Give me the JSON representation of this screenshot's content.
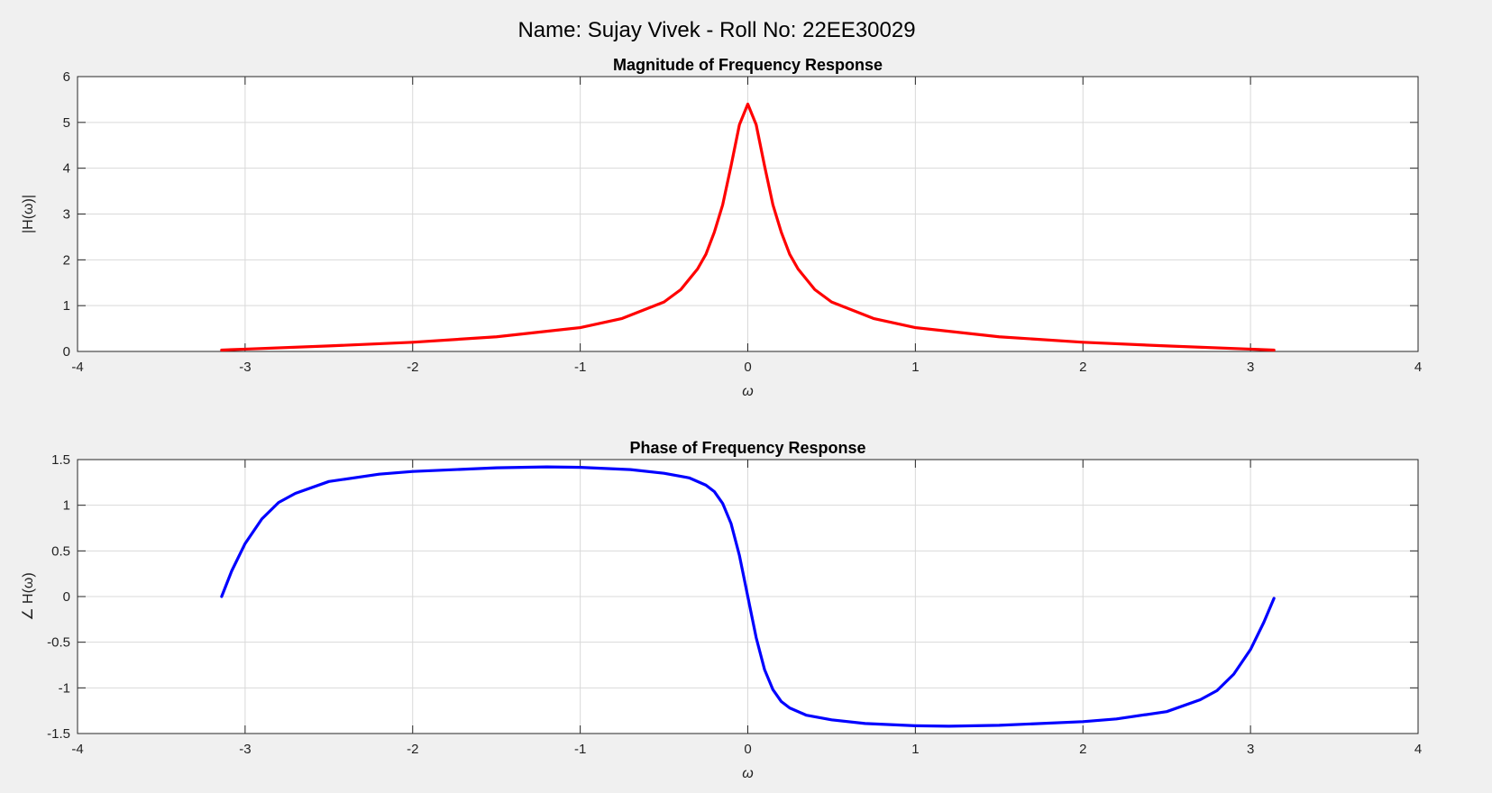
{
  "figure": {
    "suptitle": "Name: Sujay Vivek - Roll No: 22EE30029"
  },
  "chart_data": [
    {
      "type": "line",
      "title": "Magnitude of Frequency Response",
      "xlabel": "ω",
      "ylabel": "|H(ω)|",
      "xlim": [
        -4,
        4
      ],
      "ylim": [
        0,
        6
      ],
      "xticks": [
        -4,
        -3,
        -2,
        -1,
        0,
        1,
        2,
        3,
        4
      ],
      "yticks": [
        0,
        1,
        2,
        3,
        4,
        5,
        6
      ],
      "xtick_labels": [
        "-4",
        "-3",
        "-2",
        "-1",
        "0",
        "1",
        "2",
        "3",
        "4"
      ],
      "ytick_labels": [
        "0",
        "1",
        "2",
        "3",
        "4",
        "5",
        "6"
      ],
      "grid": true,
      "series": [
        {
          "color": "#ff0000",
          "x": [
            -3.14,
            -3.0,
            -2.5,
            -2.0,
            -1.5,
            -1.0,
            -0.75,
            -0.5,
            -0.4,
            -0.3,
            -0.25,
            -0.2,
            -0.15,
            -0.1,
            -0.05,
            0,
            0.05,
            0.1,
            0.15,
            0.2,
            0.25,
            0.3,
            0.4,
            0.5,
            0.75,
            1.0,
            1.5,
            2.0,
            2.5,
            3.0,
            3.14
          ],
          "y": [
            0.03,
            0.05,
            0.12,
            0.2,
            0.32,
            0.52,
            0.72,
            1.08,
            1.35,
            1.8,
            2.12,
            2.6,
            3.2,
            4.05,
            4.95,
            5.4,
            4.95,
            4.05,
            3.2,
            2.6,
            2.12,
            1.8,
            1.35,
            1.08,
            0.72,
            0.52,
            0.32,
            0.2,
            0.12,
            0.05,
            0.03
          ]
        }
      ]
    },
    {
      "type": "line",
      "title": "Phase of Frequency Response",
      "xlabel": "ω",
      "ylabel": "∠ H(ω)",
      "xlim": [
        -4,
        4
      ],
      "ylim": [
        -1.5,
        1.5
      ],
      "xticks": [
        -4,
        -3,
        -2,
        -1,
        0,
        1,
        2,
        3,
        4
      ],
      "yticks": [
        -1.5,
        -1,
        -0.5,
        0,
        0.5,
        1,
        1.5
      ],
      "xtick_labels": [
        "-4",
        "-3",
        "-2",
        "-1",
        "0",
        "1",
        "2",
        "3",
        "4"
      ],
      "ytick_labels": [
        "-1.5",
        "-1",
        "-0.5",
        "0",
        "0.5",
        "1",
        "1.5"
      ],
      "grid": true,
      "series": [
        {
          "color": "#0000ff",
          "x": [
            -3.14,
            -3.08,
            -3.0,
            -2.9,
            -2.8,
            -2.7,
            -2.5,
            -2.2,
            -2.0,
            -1.5,
            -1.2,
            -1.0,
            -0.7,
            -0.5,
            -0.35,
            -0.25,
            -0.2,
            -0.15,
            -0.1,
            -0.05,
            0,
            0.05,
            0.1,
            0.15,
            0.2,
            0.25,
            0.35,
            0.5,
            0.7,
            1.0,
            1.2,
            1.5,
            2.0,
            2.2,
            2.5,
            2.7,
            2.8,
            2.9,
            3.0,
            3.08,
            3.14
          ],
          "y": [
            0.0,
            0.28,
            0.58,
            0.85,
            1.03,
            1.13,
            1.26,
            1.34,
            1.37,
            1.41,
            1.42,
            1.415,
            1.39,
            1.35,
            1.3,
            1.22,
            1.15,
            1.02,
            0.8,
            0.45,
            0.0,
            -0.45,
            -0.8,
            -1.02,
            -1.15,
            -1.22,
            -1.3,
            -1.35,
            -1.39,
            -1.415,
            -1.42,
            -1.41,
            -1.37,
            -1.34,
            -1.26,
            -1.13,
            -1.03,
            -0.85,
            -0.58,
            -0.28,
            -0.02
          ]
        }
      ]
    }
  ]
}
